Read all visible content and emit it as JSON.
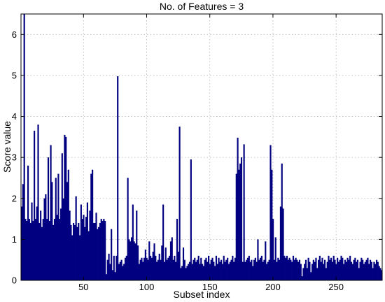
{
  "chart_data": {
    "type": "bar",
    "title": "No. of Features = 3",
    "xlabel": "Subset index",
    "ylabel": "Score value",
    "xlim": [
      0.5,
      286.5
    ],
    "ylim": [
      0,
      6.5
    ],
    "xticks": [
      50,
      100,
      150,
      200,
      250
    ],
    "yticks": [
      0,
      1,
      2,
      3,
      4,
      5,
      6
    ],
    "xtick_labels": [
      "50",
      "100",
      "150",
      "200",
      "250"
    ],
    "ytick_labels": [
      "0",
      "1",
      "2",
      "3",
      "4",
      "5",
      "6"
    ],
    "grid": true,
    "bar_color": "#000080",
    "x": [
      1,
      2,
      3,
      4,
      5,
      6,
      7,
      8,
      9,
      10,
      11,
      12,
      13,
      14,
      15,
      16,
      17,
      18,
      19,
      20,
      21,
      22,
      23,
      24,
      25,
      26,
      27,
      28,
      29,
      30,
      31,
      32,
      33,
      34,
      35,
      36,
      37,
      38,
      39,
      40,
      41,
      42,
      43,
      44,
      45,
      46,
      47,
      48,
      49,
      50,
      51,
      52,
      53,
      54,
      55,
      56,
      57,
      58,
      59,
      60,
      61,
      62,
      63,
      64,
      65,
      66,
      67,
      68,
      69,
      70,
      71,
      72,
      73,
      74,
      75,
      76,
      77,
      78,
      79,
      80,
      81,
      82,
      83,
      84,
      85,
      86,
      87,
      88,
      89,
      90,
      91,
      92,
      93,
      94,
      95,
      96,
      97,
      98,
      99,
      100,
      101,
      102,
      103,
      104,
      105,
      106,
      107,
      108,
      109,
      110,
      111,
      112,
      113,
      114,
      115,
      116,
      117,
      118,
      119,
      120,
      121,
      122,
      123,
      124,
      125,
      126,
      127,
      128,
      129,
      130,
      131,
      132,
      133,
      134,
      135,
      136,
      137,
      138,
      139,
      140,
      141,
      142,
      143,
      144,
      145,
      146,
      147,
      148,
      149,
      150,
      151,
      152,
      153,
      154,
      155,
      156,
      157,
      158,
      159,
      160,
      161,
      162,
      163,
      164,
      165,
      166,
      167,
      168,
      169,
      170,
      171,
      172,
      173,
      174,
      175,
      176,
      177,
      178,
      179,
      180,
      181,
      182,
      183,
      184,
      185,
      186,
      187,
      188,
      189,
      190,
      191,
      192,
      193,
      194,
      195,
      196,
      197,
      198,
      199,
      200,
      201,
      202,
      203,
      204,
      205,
      206,
      207,
      208,
      209,
      210,
      211,
      212,
      213,
      214,
      215,
      216,
      217,
      218,
      219,
      220,
      221,
      222,
      223,
      224,
      225,
      226,
      227,
      228,
      229,
      230,
      231,
      232,
      233,
      234,
      235,
      236,
      237,
      238,
      239,
      240,
      241,
      242,
      243,
      244,
      245,
      246,
      247,
      248,
      249,
      250,
      251,
      252,
      253,
      254,
      255,
      256,
      257,
      258,
      259,
      260,
      261,
      262,
      263,
      264,
      265,
      266,
      267,
      268,
      269,
      270,
      271,
      272,
      273,
      274,
      275,
      276,
      277,
      278,
      279,
      280,
      281,
      282,
      283,
      284,
      285,
      286
    ],
    "values": [
      1.8,
      2.35,
      6.5,
      1.5,
      1.45,
      2.8,
      1.5,
      1.4,
      1.9,
      1.45,
      3.65,
      1.5,
      1.8,
      3.8,
      1.4,
      1.7,
      1.3,
      1.5,
      2.0,
      2.1,
      1.5,
      3.0,
      1.45,
      3.3,
      2.4,
      1.35,
      1.5,
      2.5,
      1.6,
      2.6,
      1.5,
      1.75,
      3.1,
      2.0,
      3.55,
      3.5,
      2.4,
      2.7,
      1.7,
      1.35,
      1.1,
      1.4,
      1.35,
      2.05,
      1.3,
      1.4,
      1.1,
      1.85,
      1.5,
      1.6,
      1.3,
      1.55,
      1.9,
      1.2,
      1.7,
      2.6,
      2.7,
      1.4,
      1.4,
      1.65,
      1.25,
      1.3,
      1.4,
      1.5,
      1.45,
      1.5,
      1.45,
      0.15,
      0.5,
      0.65,
      0.4,
      1.25,
      0.25,
      0.6,
      0.2,
      0.6,
      4.98,
      0.4,
      0.45,
      0.5,
      0.35,
      0.4,
      0.55,
      0.6,
      2.5,
      1.0,
      0.95,
      1.05,
      1.85,
      0.95,
      0.9,
      1.7,
      0.85,
      0.4,
      0.5,
      0.55,
      0.45,
      0.55,
      0.75,
      0.55,
      0.5,
      0.95,
      0.6,
      0.55,
      0.7,
      0.9,
      0.6,
      0.45,
      0.5,
      0.65,
      0.5,
      0.85,
      1.85,
      0.45,
      0.8,
      0.5,
      0.55,
      0.6,
      0.95,
      1.05,
      0.5,
      0.6,
      0.45,
      1.5,
      0.7,
      3.75,
      0.3,
      0.35,
      0.8,
      0.5,
      0.3,
      0.35,
      0.4,
      0.45,
      2.95,
      0.4,
      0.5,
      0.55,
      0.45,
      0.5,
      0.6,
      0.4,
      0.55,
      0.4,
      0.35,
      0.5,
      0.55,
      0.45,
      0.6,
      0.4,
      0.5,
      0.55,
      0.45,
      0.35,
      0.6,
      0.4,
      0.55,
      0.45,
      0.5,
      0.4,
      0.6,
      0.45,
      0.5,
      0.55,
      0.4,
      0.45,
      0.5,
      0.6,
      0.45,
      0.55,
      2.6,
      3.48,
      2.7,
      2.85,
      3.0,
      0.45,
      3.32,
      0.45,
      0.5,
      0.55,
      0.6,
      0.45,
      0.5,
      0.35,
      0.5,
      0.55,
      0.45,
      1.0,
      0.5,
      0.55,
      0.6,
      0.45,
      0.5,
      0.95,
      0.4,
      0.45,
      0.5,
      3.3,
      2.7,
      1.5,
      0.5,
      1.05,
      0.45,
      0.55,
      0.5,
      1.8,
      2.85,
      1.75,
      0.6,
      0.55,
      0.6,
      0.5,
      0.55,
      0.5,
      0.45,
      0.6,
      0.5,
      0.55,
      0.5,
      0.45,
      0.5,
      0.4,
      0.1,
      0.3,
      0.4,
      0.5,
      0.3,
      0.55,
      0.45,
      0.2,
      0.4,
      0.5,
      0.45,
      0.55,
      0.3,
      0.5,
      0.6,
      0.45,
      0.55,
      0.4,
      0.5,
      0.3,
      0.45,
      0.6,
      0.5,
      0.55,
      0.45,
      0.6,
      0.5,
      0.4,
      0.55,
      0.45,
      0.5,
      0.6,
      0.55,
      0.4,
      0.5,
      0.45,
      0.55,
      0.5,
      0.6,
      0.45,
      0.4,
      0.5,
      0.55,
      0.45,
      0.5,
      0.3,
      0.45,
      0.55,
      0.5,
      0.4,
      0.45,
      0.5,
      0.55,
      0.4,
      0.5,
      0.45,
      0.3,
      0.45,
      0.4,
      0.5,
      0.45,
      0.35,
      0.3,
      0.25
    ]
  }
}
